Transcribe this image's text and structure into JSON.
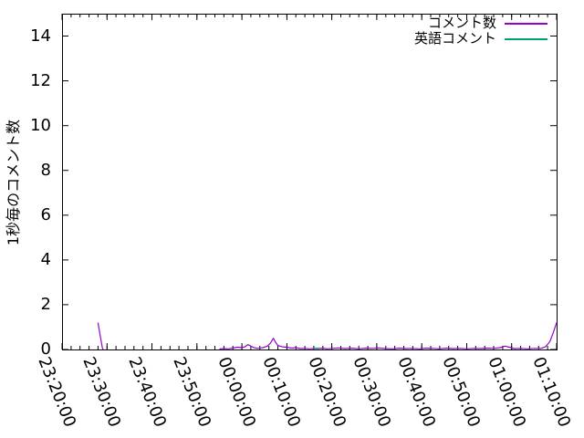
{
  "figure": {
    "background": "#ffffff",
    "axis_color": "#000000"
  },
  "chart_data": {
    "type": "line",
    "title": "",
    "xlabel": "",
    "ylabel": "1秒毎のコメント数",
    "xlim": [
      "23:20:00",
      "01:10:00"
    ],
    "ylim": [
      0,
      15
    ],
    "y_ticks": [
      0,
      2,
      4,
      6,
      8,
      10,
      12,
      14
    ],
    "x_ticks": [
      "23:20:00",
      "23:30:00",
      "23:40:00",
      "23:50:00",
      "00:00:00",
      "00:10:00",
      "00:20:00",
      "00:30:00",
      "00:40:00",
      "00:50:00",
      "01:00:00",
      "01:10:00"
    ],
    "x_minor_tick_minutes": 2,
    "grid": false,
    "legend_position": "top-right-inside",
    "series": [
      {
        "name": "コメント数",
        "color": "#9400d3",
        "points": [
          [
            "23:28:00",
            1.2
          ],
          [
            "23:28:30",
            0.6
          ],
          [
            "23:29:00",
            0.05
          ],
          [
            "23:29:10",
            0
          ],
          [
            "23:30:00",
            null
          ],
          [
            "23:55:00",
            0.02
          ],
          [
            "23:56:00",
            0.04
          ],
          [
            "23:57:00",
            0.03
          ],
          [
            "23:58:00",
            0.06
          ],
          [
            "23:59:00",
            0.1
          ],
          [
            "00:00:00",
            0.08
          ],
          [
            "00:00:40",
            0.12
          ],
          [
            "00:01:20",
            0.22
          ],
          [
            "00:02:00",
            0.15
          ],
          [
            "00:02:40",
            0.08
          ],
          [
            "00:03:30",
            0.05
          ],
          [
            "00:04:20",
            0.07
          ],
          [
            "00:05:00",
            0.1
          ],
          [
            "00:05:40",
            0.15
          ],
          [
            "00:06:20",
            0.28
          ],
          [
            "00:07:00",
            0.5
          ],
          [
            "00:07:30",
            0.32
          ],
          [
            "00:08:00",
            0.18
          ],
          [
            "00:09:00",
            0.12
          ],
          [
            "00:10:00",
            0.1
          ],
          [
            "00:11:00",
            0.06
          ],
          [
            "00:12:00",
            0.08
          ],
          [
            "00:13:00",
            0.04
          ],
          [
            "00:14:00",
            0.05
          ],
          [
            "00:15:00",
            0.03
          ],
          [
            "00:16:00",
            0.05
          ],
          [
            "00:17:00",
            0.04
          ],
          [
            "00:18:00",
            0.06
          ],
          [
            "00:19:00",
            0.03
          ],
          [
            "00:20:00",
            0.05
          ],
          [
            "00:21:30",
            0.07
          ],
          [
            "00:23:00",
            0.04
          ],
          [
            "00:24:30",
            0.06
          ],
          [
            "00:26:00",
            0.03
          ],
          [
            "00:27:30",
            0.06
          ],
          [
            "00:29:00",
            0.05
          ],
          [
            "00:30:30",
            0.07
          ],
          [
            "00:32:00",
            0.04
          ],
          [
            "00:33:30",
            0.03
          ],
          [
            "00:35:00",
            0.06
          ],
          [
            "00:36:30",
            0.04
          ],
          [
            "00:38:00",
            0.05
          ],
          [
            "00:39:30",
            0.03
          ],
          [
            "00:41:00",
            0.06
          ],
          [
            "00:42:30",
            0.05
          ],
          [
            "00:44:00",
            0.03
          ],
          [
            "00:45:30",
            0.06
          ],
          [
            "00:47:00",
            0.04
          ],
          [
            "00:48:30",
            0.05
          ],
          [
            "00:50:00",
            0.03
          ],
          [
            "00:51:30",
            0.05
          ],
          [
            "00:53:00",
            0.04
          ],
          [
            "00:54:30",
            0.06
          ],
          [
            "00:56:00",
            0.05
          ],
          [
            "00:57:30",
            0.08
          ],
          [
            "00:58:30",
            0.15
          ],
          [
            "00:59:30",
            0.1
          ],
          [
            "01:00:30",
            0.04
          ],
          [
            "01:02:00",
            0.05
          ],
          [
            "01:03:30",
            0.03
          ],
          [
            "01:05:00",
            0.05
          ],
          [
            "01:06:30",
            0.05
          ],
          [
            "01:07:30",
            0.12
          ],
          [
            "01:08:30",
            0.35
          ],
          [
            "01:09:20",
            0.8
          ],
          [
            "01:10:00",
            1.2
          ]
        ]
      },
      {
        "name": "英語コメント",
        "color": "#009e73",
        "points": [
          [
            "00:16:00",
            0.06
          ],
          [
            "00:17:20",
            0.06
          ]
        ]
      }
    ]
  }
}
